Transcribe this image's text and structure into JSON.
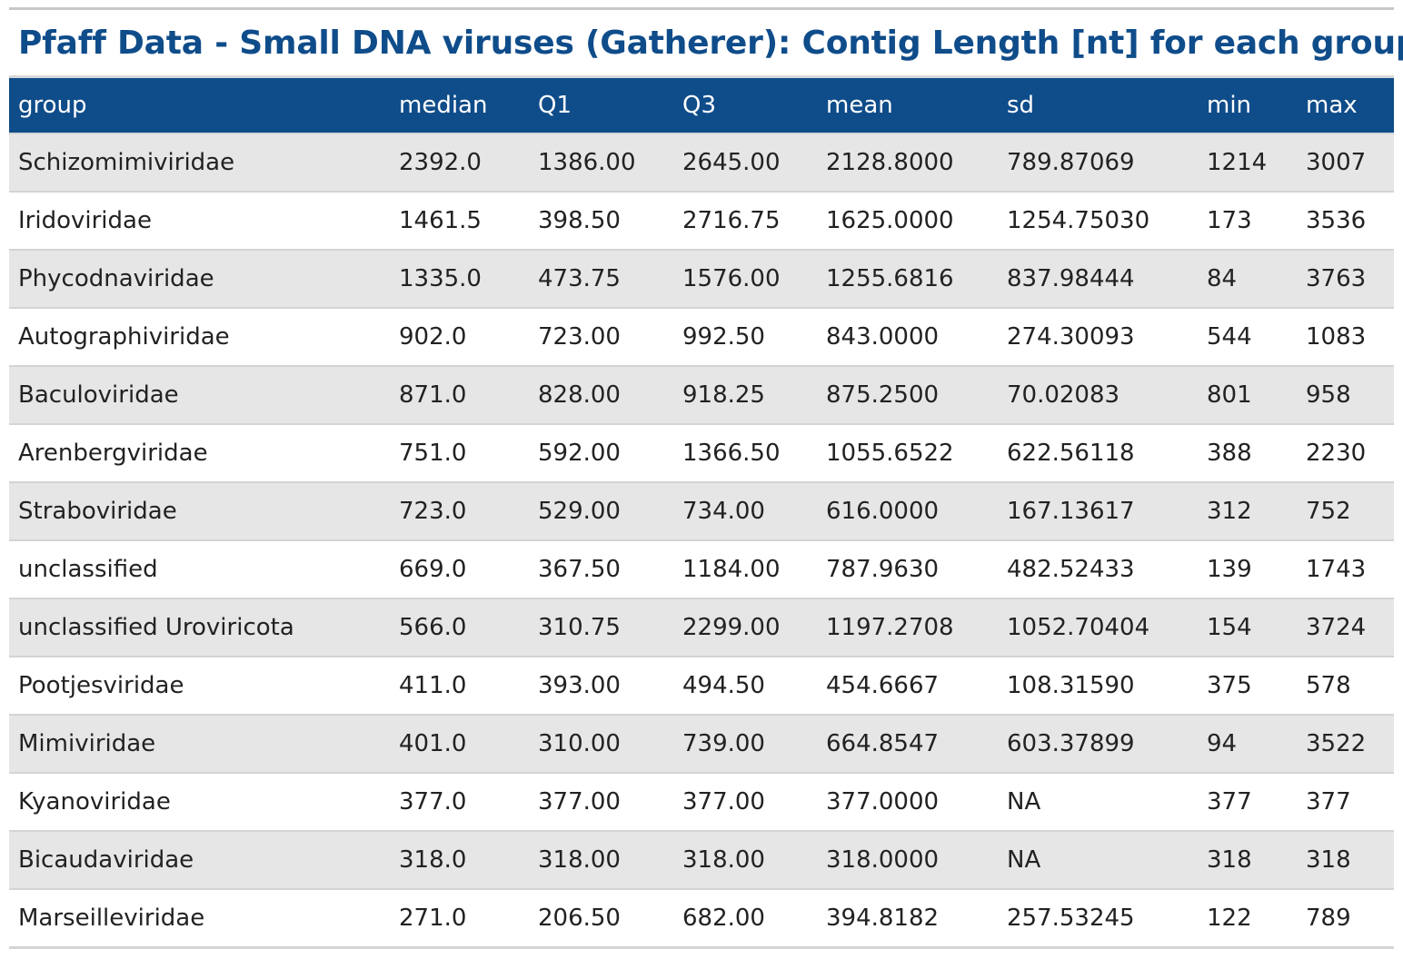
{
  "title": "Pfaff Data - Small DNA viruses (Gatherer): Contig Length [nt] for each group",
  "table": {
    "header": [
      "group",
      "median",
      "Q1",
      "Q3",
      "mean",
      "sd",
      "min",
      "max"
    ],
    "rows": [
      [
        "Schizomimiviridae",
        "2392.0",
        "1386.00",
        "2645.00",
        "2128.8000",
        "789.87069",
        "1214",
        "3007"
      ],
      [
        "Iridoviridae",
        "1461.5",
        "398.50",
        "2716.75",
        "1625.0000",
        "1254.75030",
        "173",
        "3536"
      ],
      [
        "Phycodnaviridae",
        "1335.0",
        "473.75",
        "1576.00",
        "1255.6816",
        "837.98444",
        "84",
        "3763"
      ],
      [
        "Autographiviridae",
        "902.0",
        "723.00",
        "992.50",
        "843.0000",
        "274.30093",
        "544",
        "1083"
      ],
      [
        "Baculoviridae",
        "871.0",
        "828.00",
        "918.25",
        "875.2500",
        "70.02083",
        "801",
        "958"
      ],
      [
        "Arenbergviridae",
        "751.0",
        "592.00",
        "1366.50",
        "1055.6522",
        "622.56118",
        "388",
        "2230"
      ],
      [
        "Straboviridae",
        "723.0",
        "529.00",
        "734.00",
        "616.0000",
        "167.13617",
        "312",
        "752"
      ],
      [
        "unclassified",
        "669.0",
        "367.50",
        "1184.00",
        "787.9630",
        "482.52433",
        "139",
        "1743"
      ],
      [
        "unclassified Uroviricota",
        "566.0",
        "310.75",
        "2299.00",
        "1197.2708",
        "1052.70404",
        "154",
        "3724"
      ],
      [
        "Pootjesviridae",
        "411.0",
        "393.00",
        "494.50",
        "454.6667",
        "108.31590",
        "375",
        "578"
      ],
      [
        "Mimiviridae",
        "401.0",
        "310.00",
        "739.00",
        "664.8547",
        "603.37899",
        "94",
        "3522"
      ],
      [
        "Kyanoviridae",
        "377.0",
        "377.00",
        "377.00",
        "377.0000",
        "NA",
        "377",
        "377"
      ],
      [
        "Bicaudaviridae",
        "318.0",
        "318.00",
        "318.00",
        "318.0000",
        "NA",
        "318",
        "318"
      ],
      [
        "Marseilleviridae",
        "271.0",
        "206.50",
        "682.00",
        "394.8182",
        "257.53245",
        "122",
        "789"
      ]
    ]
  }
}
